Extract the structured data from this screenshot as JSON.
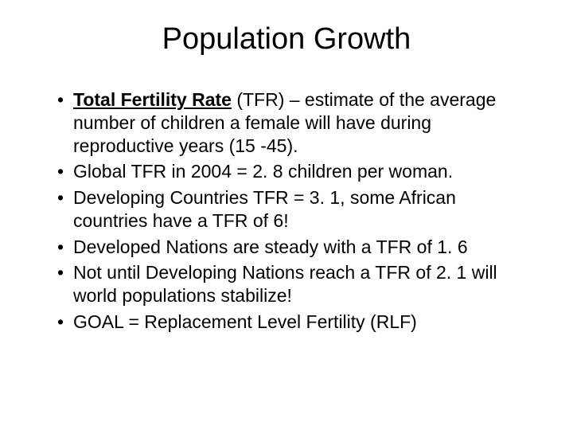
{
  "title": "Population Growth",
  "bullets": {
    "b0_pre": "Total Fertility Rate",
    "b0_post": " (TFR) – estimate of the average number of children a female will have during reproductive years (15 -45).",
    "b1": "Global TFR in 2004 = 2. 8 children per woman.",
    "b2": "Developing Countries TFR = 3. 1, some African countries have a TFR of 6!",
    "b3": "Developed Nations are steady with a TFR of 1. 6",
    "b4": "Not until Developing Nations reach a TFR of 2. 1 will world populations stabilize!",
    "b5": "GOAL = Replacement Level Fertility (RLF)"
  },
  "colors": {
    "background": "#ffffff",
    "text": "#000000"
  },
  "typography": {
    "title_fontsize": 38,
    "body_fontsize": 23,
    "font_family": "Arial"
  }
}
